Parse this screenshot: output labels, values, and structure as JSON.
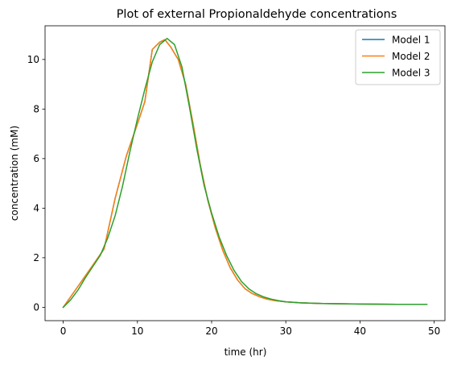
{
  "chart_data": {
    "type": "line",
    "title": "Plot of external Propionaldehyde concentrations",
    "xlabel": "time (hr)",
    "ylabel": "concentration (mM)",
    "xlim": [
      -2.45,
      51.45
    ],
    "ylim": [
      -0.54,
      11.36
    ],
    "xticks": [
      0,
      10,
      20,
      30,
      40,
      50
    ],
    "yticks": [
      0,
      2,
      4,
      6,
      8,
      10
    ],
    "grid": false,
    "legend_position": "top-right",
    "series": [
      {
        "name": "Model 1",
        "color": "#1f77b4",
        "x": [
          0,
          2,
          4,
          5.5,
          7,
          8.5,
          10,
          11,
          12,
          13,
          13.7,
          14.5,
          15.5,
          16.5,
          17.5,
          18.5,
          19.5,
          20.5,
          21.5,
          22.5,
          23.5,
          24.5,
          25.5,
          26.5,
          27.5,
          28.5,
          30,
          32,
          35,
          40,
          45,
          49
        ],
        "y": [
          0,
          0.85,
          1.7,
          2.35,
          4.4,
          6.1,
          7.4,
          8.3,
          10.4,
          10.7,
          10.8,
          10.5,
          10.0,
          9.0,
          7.4,
          5.7,
          4.3,
          3.2,
          2.3,
          1.6,
          1.1,
          0.75,
          0.55,
          0.42,
          0.33,
          0.27,
          0.22,
          0.18,
          0.15,
          0.13,
          0.12,
          0.12
        ]
      },
      {
        "name": "Model 2",
        "color": "#ff7f0e",
        "x": [
          0,
          2,
          4,
          5.5,
          7,
          8.5,
          10,
          11,
          12,
          13,
          13.7,
          14.5,
          15.5,
          16.5,
          17.5,
          18.5,
          19.5,
          20.5,
          21.5,
          22.5,
          23.5,
          24.5,
          25.5,
          26.5,
          27.5,
          28.5,
          30,
          32,
          35,
          40,
          45,
          49
        ],
        "y": [
          0,
          0.85,
          1.7,
          2.35,
          4.4,
          6.1,
          7.4,
          8.3,
          10.4,
          10.7,
          10.8,
          10.5,
          10.0,
          9.0,
          7.4,
          5.7,
          4.3,
          3.2,
          2.3,
          1.6,
          1.1,
          0.75,
          0.55,
          0.42,
          0.33,
          0.27,
          0.22,
          0.18,
          0.15,
          0.13,
          0.12,
          0.12
        ]
      },
      {
        "name": "Model 3",
        "color": "#2ca02c",
        "x": [
          0,
          1,
          2,
          3,
          4,
          5,
          6,
          7,
          8,
          9,
          10,
          11,
          12,
          13,
          14,
          15,
          16,
          17,
          18,
          19,
          20,
          21,
          22,
          23,
          24,
          25,
          26,
          27,
          28,
          29,
          30,
          32,
          35,
          40,
          45,
          49
        ],
        "y": [
          0,
          0.3,
          0.7,
          1.2,
          1.65,
          2.1,
          2.8,
          3.7,
          4.9,
          6.3,
          7.6,
          8.8,
          9.9,
          10.6,
          10.85,
          10.6,
          9.7,
          8.1,
          6.4,
          4.9,
          3.8,
          2.85,
          2.1,
          1.5,
          1.05,
          0.75,
          0.55,
          0.42,
          0.33,
          0.27,
          0.22,
          0.18,
          0.15,
          0.13,
          0.12,
          0.12
        ]
      }
    ]
  }
}
